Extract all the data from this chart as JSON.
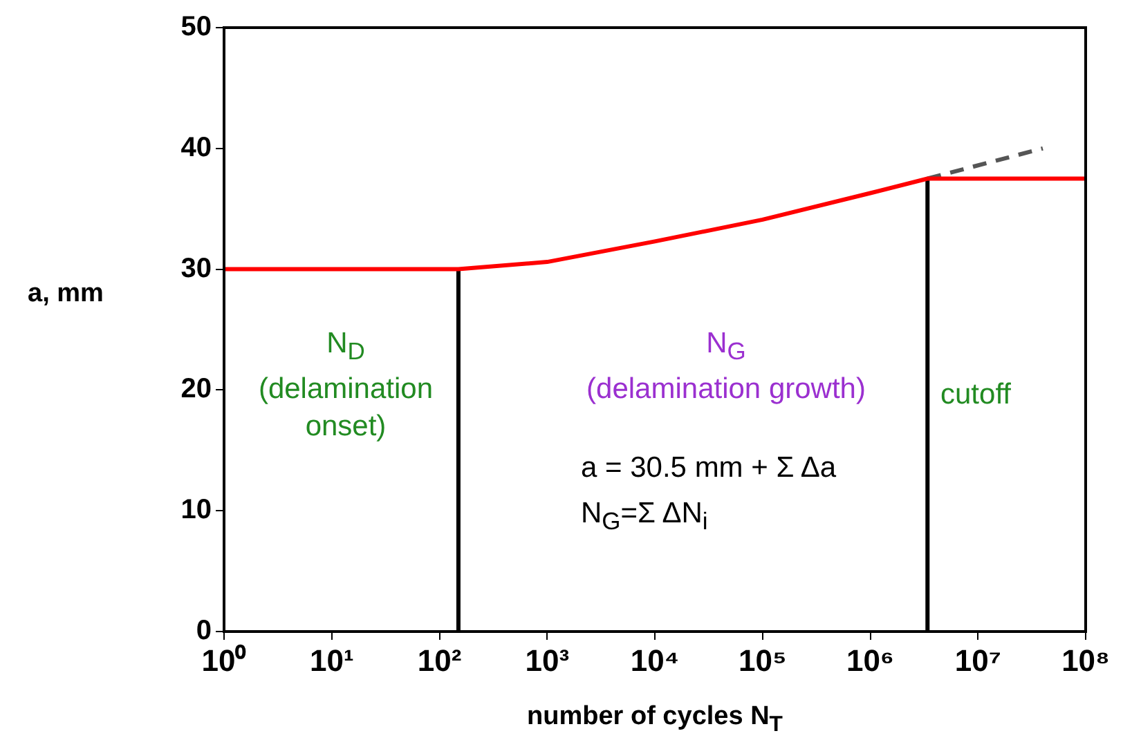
{
  "chart_data": {
    "type": "line",
    "xlabel": "number of cycles N$_{T}$",
    "ylabel": "a, mm",
    "xlim": [
      1,
      100000000
    ],
    "ylim": [
      0,
      50
    ],
    "log": "x",
    "xticks": [
      {
        "value": 1,
        "label": "10⁰"
      },
      {
        "value": 10,
        "label": "10¹"
      },
      {
        "value": 100,
        "label": "10²"
      },
      {
        "value": 1000,
        "label": "10³"
      },
      {
        "value": 10000,
        "label": "10⁴"
      },
      {
        "value": 100000,
        "label": "10⁵"
      },
      {
        "value": 1000000,
        "label": "10⁶"
      },
      {
        "value": 10000000,
        "label": "10⁷"
      },
      {
        "value": 100000000,
        "label": "10⁸"
      }
    ],
    "yticks": [
      0,
      10,
      20,
      30,
      40,
      50
    ],
    "grid": false,
    "legend": false,
    "marker": "none",
    "series": [
      {
        "color": "#ff0000",
        "x": [
          1,
          150,
          1000,
          10000,
          100000,
          1000000,
          3400000,
          100000000
        ],
        "values": [
          30,
          30,
          30.6,
          32.3,
          34.1,
          36.3,
          37.5,
          37.5
        ]
      },
      {
        "color": "#555555",
        "line_style": "dashed",
        "x": [
          3400000,
          40000000
        ],
        "values": [
          37.5,
          40
        ]
      },
      {
        "color": "#000000",
        "x": [
          150,
          150
        ],
        "values": [
          0,
          30
        ]
      },
      {
        "color": "#000000",
        "x": [
          3400000,
          3400000
        ],
        "values": [
          0,
          37.5
        ]
      }
    ],
    "annotations": [
      "N$_{D}$\n(delamination\nonset)",
      "N$_{G}$\n(delamination growth)",
      "cutoff",
      "a = 30.5 mm + Σ Δa",
      "N$_{G}$=Σ ΔN$_{i}$"
    ]
  }
}
